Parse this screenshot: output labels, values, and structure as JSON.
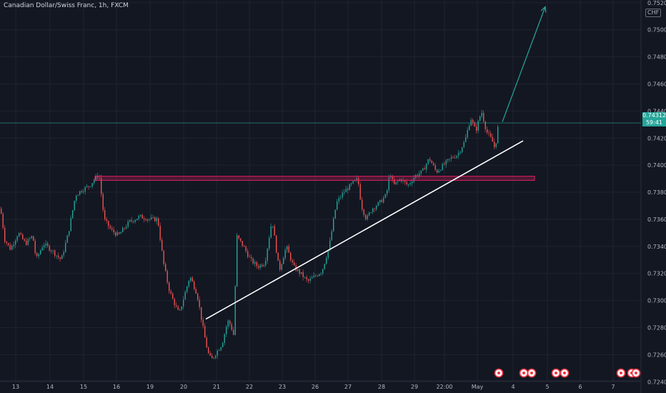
{
  "header": {
    "title": "Canadian Dollar/Swiss Franc, 1h, FXCM",
    "currency": "CHF"
  },
  "price_tag": {
    "price": "0.74312",
    "countdown": "59:41"
  },
  "colors": {
    "background": "#131722",
    "grid": "#1f2330",
    "up": "#26a69a",
    "down": "#ef5350",
    "axis_text": "#b2b5be",
    "trendline": "#ffffff",
    "zone": "#e91e63",
    "arrow": "#26a69a",
    "price_line": "#26a69a"
  },
  "event_icons": [
    "event-icon",
    "event-icon",
    "event-icon",
    "event-icon",
    "event-icon",
    "event-icon",
    "event-icon",
    "event-icon"
  ],
  "chart_data": {
    "type": "candlestick",
    "title": "Canadian Dollar/Swiss Franc, 1h, FXCM",
    "x_ticks": [
      "13",
      "14",
      "15",
      "16",
      "19",
      "20",
      "21",
      "22",
      "23",
      "26",
      "27",
      "28",
      "29",
      "22:00",
      "May",
      "4",
      "5",
      "6",
      "7"
    ],
    "y_ticks": [
      "0.75200",
      "0.75000",
      "0.74800",
      "0.74600",
      "0.74400",
      "0.74200",
      "0.74000",
      "0.73800",
      "0.73600",
      "0.73400",
      "0.73200",
      "0.73000",
      "0.72800",
      "0.72600",
      "0.72400"
    ],
    "ylim": [
      0.7237,
      0.7522
    ],
    "last_price": 0.74312,
    "path": [
      [
        0,
        0.7368
      ],
      [
        6,
        0.7345
      ],
      [
        14,
        0.7338
      ],
      [
        25,
        0.735
      ],
      [
        35,
        0.7342
      ],
      [
        45,
        0.7348
      ],
      [
        50,
        0.733
      ],
      [
        60,
        0.7342
      ],
      [
        70,
        0.7338
      ],
      [
        85,
        0.733
      ],
      [
        95,
        0.735
      ],
      [
        105,
        0.7378
      ],
      [
        115,
        0.7382
      ],
      [
        125,
        0.7385
      ],
      [
        132,
        0.739
      ],
      [
        138,
        0.7393
      ],
      [
        145,
        0.736
      ],
      [
        155,
        0.7352
      ],
      [
        165,
        0.7348
      ],
      [
        180,
        0.7358
      ],
      [
        195,
        0.7362
      ],
      [
        210,
        0.736
      ],
      [
        220,
        0.736
      ],
      [
        228,
        0.7328
      ],
      [
        235,
        0.731
      ],
      [
        240,
        0.7302
      ],
      [
        250,
        0.729
      ],
      [
        258,
        0.7305
      ],
      [
        265,
        0.7318
      ],
      [
        275,
        0.7305
      ],
      [
        285,
        0.7275
      ],
      [
        290,
        0.7262
      ],
      [
        295,
        0.7256
      ],
      [
        300,
        0.726
      ],
      [
        310,
        0.7268
      ],
      [
        318,
        0.7285
      ],
      [
        322,
        0.7282
      ],
      [
        327,
        0.7273
      ],
      [
        330,
        0.7348
      ],
      [
        340,
        0.734
      ],
      [
        350,
        0.733
      ],
      [
        360,
        0.7325
      ],
      [
        370,
        0.7328
      ],
      [
        380,
        0.736
      ],
      [
        390,
        0.7322
      ],
      [
        400,
        0.734
      ],
      [
        410,
        0.7325
      ],
      [
        420,
        0.732
      ],
      [
        430,
        0.7314
      ],
      [
        440,
        0.7318
      ],
      [
        450,
        0.7322
      ],
      [
        460,
        0.734
      ],
      [
        470,
        0.7372
      ],
      [
        480,
        0.738
      ],
      [
        490,
        0.7385
      ],
      [
        500,
        0.739
      ],
      [
        505,
        0.737
      ],
      [
        512,
        0.736
      ],
      [
        520,
        0.7368
      ],
      [
        530,
        0.7372
      ],
      [
        540,
        0.7378
      ],
      [
        545,
        0.7395
      ],
      [
        550,
        0.7385
      ],
      [
        560,
        0.739
      ],
      [
        570,
        0.7385
      ],
      [
        580,
        0.7392
      ],
      [
        590,
        0.7395
      ],
      [
        600,
        0.7405
      ],
      [
        610,
        0.7395
      ],
      [
        620,
        0.74
      ],
      [
        630,
        0.7405
      ],
      [
        640,
        0.7408
      ],
      [
        650,
        0.7418
      ],
      [
        658,
        0.7435
      ],
      [
        665,
        0.7425
      ],
      [
        673,
        0.744
      ],
      [
        680,
        0.7425
      ],
      [
        688,
        0.7418
      ],
      [
        692,
        0.7412
      ],
      [
        697,
        0.74312
      ]
    ],
    "annotations": {
      "trendline": {
        "from": [
          288,
          0.72863
        ],
        "to": [
          732,
          0.7418
        ]
      },
      "resistance_zone": {
        "top": 0.73918,
        "bottom": 0.73888,
        "from_x": 133,
        "to_x": 748
      },
      "forecast_arrow": {
        "from": [
          703,
          0.7432
        ],
        "to": [
          763,
          0.7517
        ]
      }
    }
  }
}
